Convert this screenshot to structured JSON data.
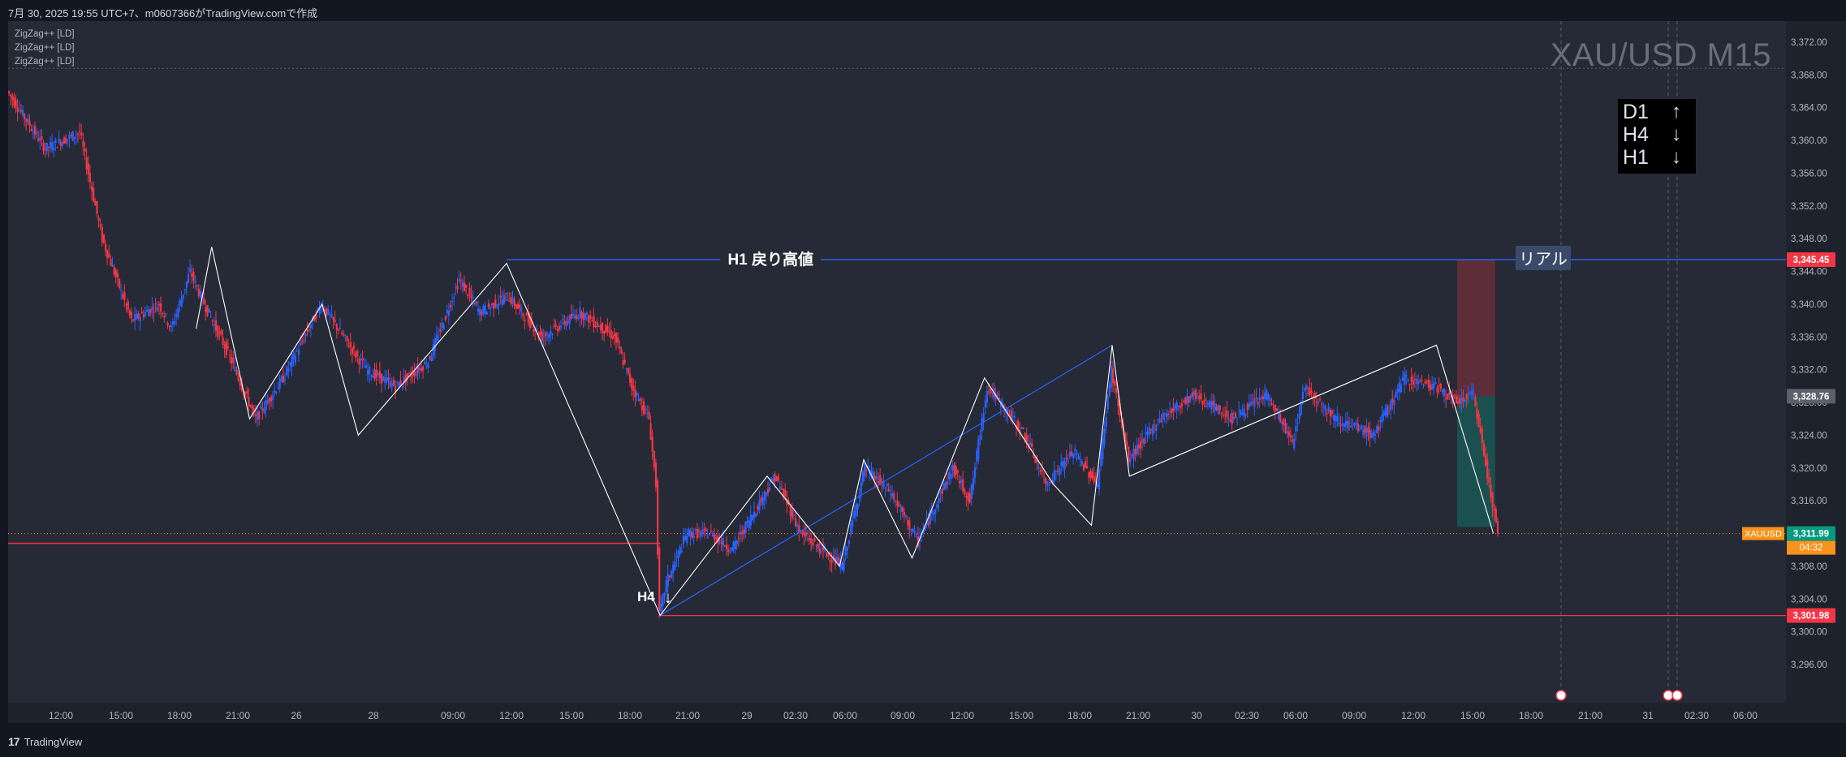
{
  "header": {
    "caption": "7月 30, 2025 19:55 UTC+7、m0607366がTradingView.comで作成"
  },
  "indicators": [
    "ZigZag++ [LD]",
    "ZigZag++ [LD]",
    "ZigZag++ [LD]"
  ],
  "symbol_title": "XAU/USD M15",
  "trend_box": {
    "rows": [
      {
        "tf": "D1",
        "dir": "↑"
      },
      {
        "tf": "H4",
        "dir": "↓"
      },
      {
        "tf": "H1",
        "dir": "↓"
      }
    ]
  },
  "annotations": {
    "h1_label": "H1 戻り高値",
    "h4_label": "H4",
    "h4_arrow": "↓",
    "real_label": "リアル"
  },
  "price_badges": {
    "h1_high": "3,345.45",
    "marker": "3,328.76",
    "current": "3,311.99",
    "countdown": "04:32",
    "symbol": "XAUUSD",
    "low": "3,301.98"
  },
  "footer": {
    "brand": "TradingView",
    "logo_mark": "17"
  },
  "colors": {
    "background": "#262a36",
    "up": "#2962ff",
    "down": "#f23645",
    "h1_line": "#2962ff",
    "h4_line": "#f23645",
    "zigzag": "#ffffff"
  },
  "chart_data": {
    "type": "candlestick",
    "symbol": "XAU/USD",
    "timeframe": "M15",
    "ylim": [
      3294,
      3374
    ],
    "y_ticks": [
      "3,372.00",
      "3,368.00",
      "3,364.00",
      "3,360.00",
      "3,356.00",
      "3,352.00",
      "3,348.00",
      "3,344.00",
      "3,340.00",
      "3,336.00",
      "3,332.00",
      "3,328.00",
      "3,324.00",
      "3,320.00",
      "3,316.00",
      "3,312.00",
      "3,308.00",
      "3,304.00",
      "3,300.00",
      "3,296.00"
    ],
    "x_ticks": [
      "12:00",
      "15:00",
      "18:00",
      "21:00",
      "26",
      "28",
      "09:00",
      "12:00",
      "15:00",
      "18:00",
      "21:00",
      "29",
      "02:30",
      "06:00",
      "09:00",
      "12:00",
      "15:00",
      "18:00",
      "21:00",
      "30",
      "02:30",
      "06:00",
      "09:00",
      "12:00",
      "15:00",
      "18:00",
      "21:00",
      "31",
      "02:30",
      "06:00"
    ],
    "price_path": [
      {
        "t": 0,
        "p": 3366
      },
      {
        "t": 22,
        "p": 3359
      },
      {
        "t": 42,
        "p": 3361
      },
      {
        "t": 55,
        "p": 3348
      },
      {
        "t": 72,
        "p": 3338
      },
      {
        "t": 88,
        "p": 3340
      },
      {
        "t": 95,
        "p": 3337
      },
      {
        "t": 106,
        "p": 3344
      },
      {
        "t": 112,
        "p": 3341
      },
      {
        "t": 128,
        "p": 3334
      },
      {
        "t": 144,
        "p": 3326
      },
      {
        "t": 160,
        "p": 3331
      },
      {
        "t": 182,
        "p": 3340
      },
      {
        "t": 208,
        "p": 3332
      },
      {
        "t": 225,
        "p": 3330
      },
      {
        "t": 244,
        "p": 3333
      },
      {
        "t": 262,
        "p": 3343
      },
      {
        "t": 274,
        "p": 3339
      },
      {
        "t": 290,
        "p": 3341
      },
      {
        "t": 310,
        "p": 3336
      },
      {
        "t": 332,
        "p": 3339
      },
      {
        "t": 352,
        "p": 3336
      },
      {
        "t": 362,
        "p": 3330
      },
      {
        "t": 372,
        "p": 3326
      },
      {
        "t": 376,
        "p": 3318
      },
      {
        "t": 378,
        "p": 3302
      },
      {
        "t": 382,
        "p": 3306
      },
      {
        "t": 394,
        "p": 3312
      },
      {
        "t": 408,
        "p": 3312
      },
      {
        "t": 420,
        "p": 3310
      },
      {
        "t": 445,
        "p": 3319
      },
      {
        "t": 460,
        "p": 3312
      },
      {
        "t": 484,
        "p": 3308
      },
      {
        "t": 497,
        "p": 3320
      },
      {
        "t": 512,
        "p": 3317
      },
      {
        "t": 528,
        "p": 3311
      },
      {
        "t": 548,
        "p": 3320
      },
      {
        "t": 558,
        "p": 3316
      },
      {
        "t": 568,
        "p": 3330
      },
      {
        "t": 590,
        "p": 3324
      },
      {
        "t": 602,
        "p": 3318
      },
      {
        "t": 618,
        "p": 3322
      },
      {
        "t": 632,
        "p": 3318
      },
      {
        "t": 640,
        "p": 3332
      },
      {
        "t": 650,
        "p": 3321
      },
      {
        "t": 668,
        "p": 3326
      },
      {
        "t": 688,
        "p": 3329
      },
      {
        "t": 710,
        "p": 3326
      },
      {
        "t": 730,
        "p": 3329
      },
      {
        "t": 745,
        "p": 3323
      },
      {
        "t": 752,
        "p": 3330
      },
      {
        "t": 770,
        "p": 3326
      },
      {
        "t": 792,
        "p": 3324
      },
      {
        "t": 810,
        "p": 3331
      },
      {
        "t": 828,
        "p": 3330
      },
      {
        "t": 840,
        "p": 3328
      },
      {
        "t": 850,
        "p": 3329
      },
      {
        "t": 864,
        "p": 3312
      }
    ],
    "zigzag": [
      {
        "t": 109,
        "p": 3337
      },
      {
        "t": 118,
        "p": 3347
      },
      {
        "t": 140,
        "p": 3326
      },
      {
        "t": 182,
        "p": 3340
      },
      {
        "t": 203,
        "p": 3324
      },
      {
        "t": 289,
        "p": 3345
      },
      {
        "t": 378,
        "p": 3302
      },
      {
        "t": 440,
        "p": 3319
      },
      {
        "t": 482,
        "p": 3308
      },
      {
        "t": 496,
        "p": 3321
      },
      {
        "t": 524,
        "p": 3309
      },
      {
        "t": 566,
        "p": 3331
      },
      {
        "t": 606,
        "p": 3318
      },
      {
        "t": 628,
        "p": 3313
      },
      {
        "t": 640,
        "p": 3335
      },
      {
        "t": 650,
        "p": 3319
      },
      {
        "t": 828,
        "p": 3335
      },
      {
        "t": 861,
        "p": 3312
      }
    ],
    "trend_line": [
      {
        "t": 378,
        "p": 3302
      },
      {
        "t": 640,
        "p": 3335
      }
    ],
    "h1_high_level": 3345.45,
    "h4_level": 3310.8,
    "low_level": 3301.98,
    "current_price": 3311.99,
    "position": {
      "entry": 3328.76,
      "stop": 3345.45,
      "target": 3312.8
    }
  }
}
